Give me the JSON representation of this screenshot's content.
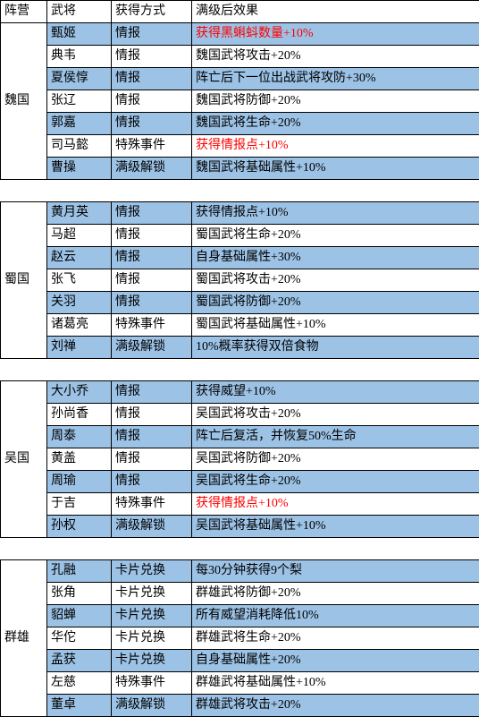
{
  "headers": [
    "阵营",
    "武将",
    "获得方式",
    "满级后效果"
  ],
  "colors": {
    "row_highlight": "#9cc2e5",
    "row_plain": "#ffffff",
    "text_red": "#ff0000",
    "text_black": "#000000",
    "border": "#000000"
  },
  "groups": [
    {
      "faction": "魏国",
      "rows": [
        {
          "general": "甄姬",
          "method": "情报",
          "effect": "获得黑蝌蚪数量+10%",
          "hl": true,
          "red": true
        },
        {
          "general": "典韦",
          "method": "情报",
          "effect": "魏国武将攻击+20%",
          "hl": false,
          "red": false
        },
        {
          "general": "夏侯惇",
          "method": "情报",
          "effect": "阵亡后下一位出战武将攻防+30%",
          "hl": true,
          "red": false
        },
        {
          "general": "张辽",
          "method": "情报",
          "effect": "魏国武将防御+20%",
          "hl": false,
          "red": false
        },
        {
          "general": "郭嘉",
          "method": "情报",
          "effect": "魏国武将生命+20%",
          "hl": true,
          "red": false
        },
        {
          "general": "司马懿",
          "method": "特殊事件",
          "effect": "获得情报点+10%",
          "hl": false,
          "red": true
        },
        {
          "general": "曹操",
          "method": "满级解锁",
          "effect": "魏国武将基础属性+10%",
          "hl": true,
          "red": false
        }
      ]
    },
    {
      "faction": "蜀国",
      "rows": [
        {
          "general": "黄月英",
          "method": "情报",
          "effect": "获得情报点+10%",
          "hl": true,
          "red": false
        },
        {
          "general": "马超",
          "method": "情报",
          "effect": "蜀国武将生命+20%",
          "hl": false,
          "red": false
        },
        {
          "general": "赵云",
          "method": "情报",
          "effect": "自身基础属性+30%",
          "hl": true,
          "red": false
        },
        {
          "general": "张飞",
          "method": "情报",
          "effect": "蜀国武将攻击+20%",
          "hl": false,
          "red": false
        },
        {
          "general": "关羽",
          "method": "情报",
          "effect": "蜀国武将防御+20%",
          "hl": true,
          "red": false
        },
        {
          "general": "诸葛亮",
          "method": "特殊事件",
          "effect": "蜀国武将基础属性+10%",
          "hl": false,
          "red": false
        },
        {
          "general": "刘禅",
          "method": "满级解锁",
          "effect": "10%概率获得双倍食物",
          "hl": true,
          "red": false
        }
      ]
    },
    {
      "faction": "吴国",
      "rows": [
        {
          "general": "大小乔",
          "method": "情报",
          "effect": "获得威望+10%",
          "hl": true,
          "red": false
        },
        {
          "general": "孙尚香",
          "method": "情报",
          "effect": "吴国武将攻击+20%",
          "hl": false,
          "red": false
        },
        {
          "general": "周泰",
          "method": "情报",
          "effect": "阵亡后复活，并恢复50%生命",
          "hl": true,
          "red": false
        },
        {
          "general": "黄盖",
          "method": "情报",
          "effect": "吴国武将防御+20%",
          "hl": false,
          "red": false
        },
        {
          "general": "周瑜",
          "method": "情报",
          "effect": "吴国武将生命+20%",
          "hl": true,
          "red": false
        },
        {
          "general": "于吉",
          "method": "特殊事件",
          "effect": "获得情报点+10%",
          "hl": false,
          "red": true
        },
        {
          "general": "孙权",
          "method": "满级解锁",
          "effect": "吴国武将基础属性+10%",
          "hl": true,
          "red": false
        }
      ]
    },
    {
      "faction": "群雄",
      "rows": [
        {
          "general": "孔融",
          "method": "卡片兑换",
          "effect": "每30分钟获得9个梨",
          "hl": true,
          "red": false
        },
        {
          "general": "张角",
          "method": "卡片兑换",
          "effect": "群雄武将防御+20%",
          "hl": false,
          "red": false
        },
        {
          "general": "貂蝉",
          "method": "卡片兑换",
          "effect": "所有威望消耗降低10%",
          "hl": true,
          "red": false
        },
        {
          "general": "华佗",
          "method": "卡片兑换",
          "effect": "群雄武将生命+20%",
          "hl": false,
          "red": false
        },
        {
          "general": "孟获",
          "method": "卡片兑换",
          "effect": "自身基础属性+20%",
          "hl": true,
          "red": false
        },
        {
          "general": "左慈",
          "method": "特殊事件",
          "effect": "群雄武将基础属性+10%",
          "hl": false,
          "red": false
        },
        {
          "general": "董卓",
          "method": "满级解锁",
          "effect": "群雄武将攻击+20%",
          "hl": true,
          "red": false
        }
      ]
    }
  ]
}
